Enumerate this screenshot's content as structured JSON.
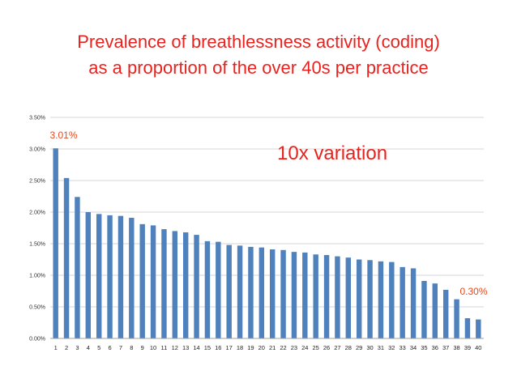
{
  "slide": {
    "title_line1": "Prevalence of breathlessness activity (coding)",
    "title_line2": "as a proportion of the over 40s per practice"
  },
  "chart_data": {
    "type": "bar",
    "title": "",
    "xlabel": "",
    "ylabel": "",
    "categories": [
      "1",
      "2",
      "3",
      "4",
      "5",
      "6",
      "7",
      "8",
      "9",
      "10",
      "11",
      "12",
      "13",
      "14",
      "15",
      "16",
      "17",
      "18",
      "19",
      "20",
      "21",
      "22",
      "23",
      "24",
      "25",
      "26",
      "27",
      "28",
      "29",
      "30",
      "31",
      "32",
      "33",
      "34",
      "35",
      "36",
      "37",
      "38",
      "39",
      "40"
    ],
    "values": [
      3.01,
      2.54,
      2.24,
      2.0,
      1.97,
      1.95,
      1.94,
      1.91,
      1.81,
      1.79,
      1.73,
      1.7,
      1.68,
      1.64,
      1.54,
      1.53,
      1.48,
      1.47,
      1.45,
      1.44,
      1.41,
      1.4,
      1.37,
      1.36,
      1.33,
      1.32,
      1.3,
      1.28,
      1.25,
      1.24,
      1.22,
      1.21,
      1.13,
      1.11,
      0.91,
      0.87,
      0.77,
      0.62,
      0.32,
      0.3
    ],
    "ylim": [
      0,
      3.5
    ],
    "y_ticks": [
      "0.00%",
      "0.50%",
      "1.00%",
      "1.50%",
      "2.00%",
      "2.50%",
      "3.00%",
      "3.50%"
    ],
    "y_tick_values": [
      0,
      0.5,
      1.0,
      1.5,
      2.0,
      2.5,
      3.0,
      3.5
    ],
    "grid": true,
    "bar_color": "#4f81bd",
    "annotations": {
      "max_label": "3.01%",
      "min_label": "0.30%",
      "callout": "10x variation",
      "annotation_color": "#e8491d",
      "callout_color": "#e8231f"
    }
  }
}
